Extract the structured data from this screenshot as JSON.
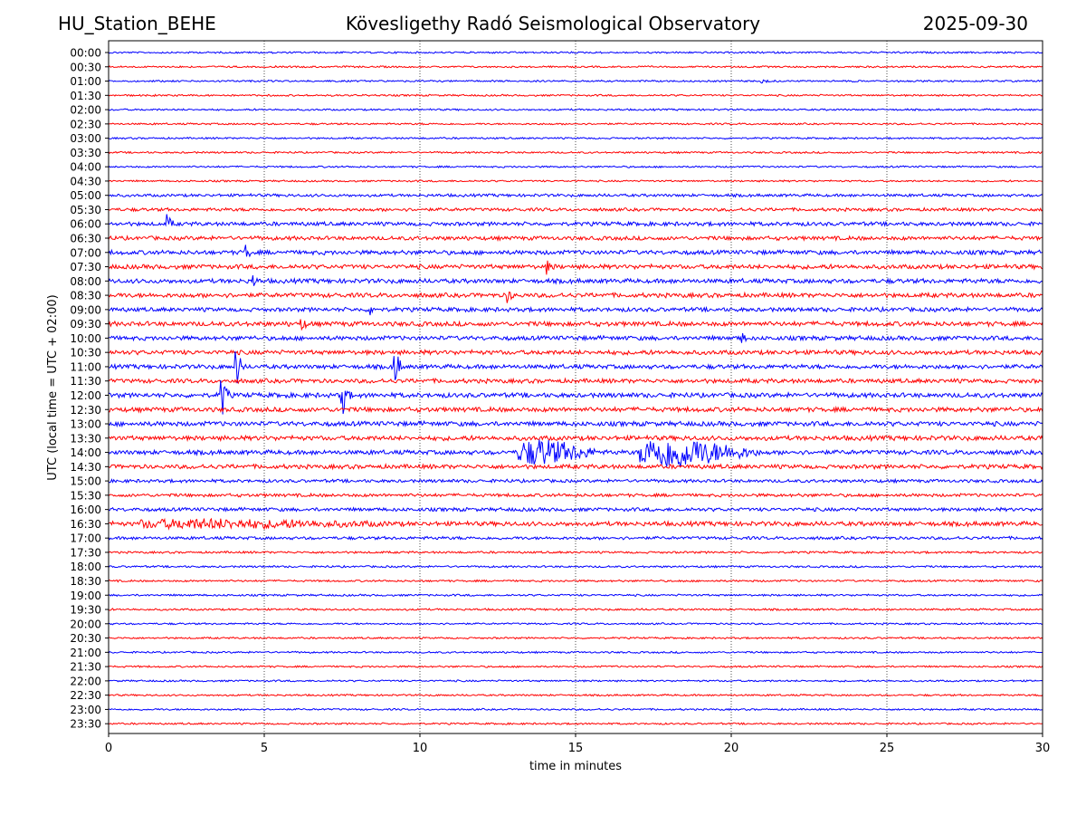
{
  "header": {
    "station": "HU_Station_BEHE",
    "title": "Kövesligethy Radó Seismological Observatory",
    "date": "2025-09-30"
  },
  "chart_data": {
    "type": "line",
    "subtype": "helicorder",
    "title": "Kövesligethy Radó Seismological Observatory",
    "xlabel": "time in minutes",
    "ylabel": "UTC (local time = UTC + 02:00)",
    "xlim": [
      0,
      30
    ],
    "xticks": [
      "0",
      "5",
      "10",
      "15",
      "20",
      "25",
      "30"
    ],
    "vertical_gridlines_at": [
      5,
      10,
      15,
      20,
      25
    ],
    "row_labels": [
      "00:00",
      "00:30",
      "01:00",
      "01:30",
      "02:00",
      "02:30",
      "03:00",
      "03:30",
      "04:00",
      "04:30",
      "05:00",
      "05:30",
      "06:00",
      "06:30",
      "07:00",
      "07:30",
      "08:00",
      "08:30",
      "09:00",
      "09:30",
      "10:00",
      "10:30",
      "11:00",
      "11:30",
      "12:00",
      "12:30",
      "13:00",
      "13:30",
      "14:00",
      "14:30",
      "15:00",
      "15:30",
      "16:00",
      "16:30",
      "17:00",
      "17:30",
      "18:00",
      "18:30",
      "19:00",
      "19:30",
      "20:00",
      "20:30",
      "21:00",
      "21:30",
      "22:00",
      "22:30",
      "23:00",
      "23:30"
    ],
    "colors": {
      "even_rows": "#0000ff",
      "odd_rows": "#ff0000"
    },
    "noise_level": [
      1,
      1,
      1,
      1,
      1,
      1,
      1,
      1,
      1,
      1,
      1.6,
      1.8,
      2.2,
      2.2,
      2.4,
      2.5,
      2.5,
      2.5,
      2.3,
      2.6,
      2.4,
      2.5,
      2.4,
      2.4,
      2.6,
      2.6,
      2.6,
      2.6,
      2.5,
      2.4,
      1.8,
      1.8,
      2,
      2.5,
      1.7,
      1.2,
      1.1,
      1.1,
      1.1,
      1.1,
      1,
      1,
      1,
      1,
      1,
      1,
      1,
      1
    ],
    "events": [
      {
        "row": "01:00",
        "minute": 21.0,
        "amplitude": 3,
        "duration_min": 0.2
      },
      {
        "row": "06:00",
        "minute": 1.9,
        "amplitude": 9,
        "duration_min": 0.2
      },
      {
        "row": "07:00",
        "minute": 4.4,
        "amplitude": 8,
        "duration_min": 0.3
      },
      {
        "row": "07:30",
        "minute": 14.1,
        "amplitude": 7,
        "duration_min": 0.4
      },
      {
        "row": "08:00",
        "minute": 4.6,
        "amplitude": 10,
        "duration_min": 0.2
      },
      {
        "row": "08:30",
        "minute": 12.8,
        "amplitude": 9,
        "duration_min": 0.4
      },
      {
        "row": "09:00",
        "minute": 8.4,
        "amplitude": 6,
        "duration_min": 0.5
      },
      {
        "row": "09:30",
        "minute": 6.2,
        "amplitude": 6,
        "duration_min": 0.6
      },
      {
        "row": "10:00",
        "minute": 20.3,
        "amplitude": 8,
        "duration_min": 0.2
      },
      {
        "row": "11:00",
        "minute": 4.1,
        "amplitude": 28,
        "duration_min": 0.3
      },
      {
        "row": "11:00",
        "minute": 9.2,
        "amplitude": 26,
        "duration_min": 0.3
      },
      {
        "row": "12:00",
        "minute": 3.65,
        "amplitude": 26,
        "duration_min": 0.3
      },
      {
        "row": "12:00",
        "minute": 7.5,
        "amplitude": 26,
        "duration_min": 0.3
      },
      {
        "row": "14:00",
        "minute": 13.2,
        "amplitude": 14,
        "duration_min": 2.6
      },
      {
        "row": "14:00",
        "minute": 17.1,
        "amplitude": 17,
        "duration_min": 3.8
      },
      {
        "row": "16:30",
        "minute": 1.0,
        "amplitude": 4,
        "duration_min": 8.5
      }
    ]
  }
}
